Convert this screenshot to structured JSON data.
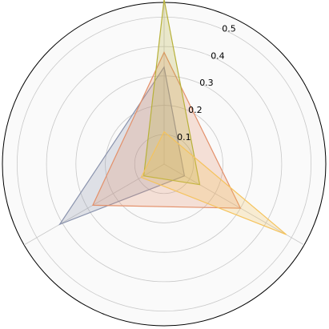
{
  "chart_data": {
    "type": "radar",
    "axes": [
      "",
      "",
      ""
    ],
    "rlim": [
      0,
      0.55
    ],
    "r_ticks": [
      0.1,
      0.2,
      0.3,
      0.4,
      0.5
    ],
    "r_tick_labels": [
      "0.1",
      "0.2",
      "0.3",
      "0.4",
      "0.5"
    ],
    "grid": true,
    "title": "",
    "legend": null,
    "series": [
      {
        "values": [
          0.33,
          0.41,
          0.08
        ],
        "color": "#8a93ad"
      },
      {
        "values": [
          0.38,
          0.28,
          0.3
        ],
        "color": "#e3906a"
      },
      {
        "values": [
          0.56,
          0.08,
          0.14
        ],
        "color": "#b7b13a"
      },
      {
        "values": [
          0.11,
          0.09,
          0.48
        ],
        "color": "#f5c35c"
      }
    ]
  }
}
